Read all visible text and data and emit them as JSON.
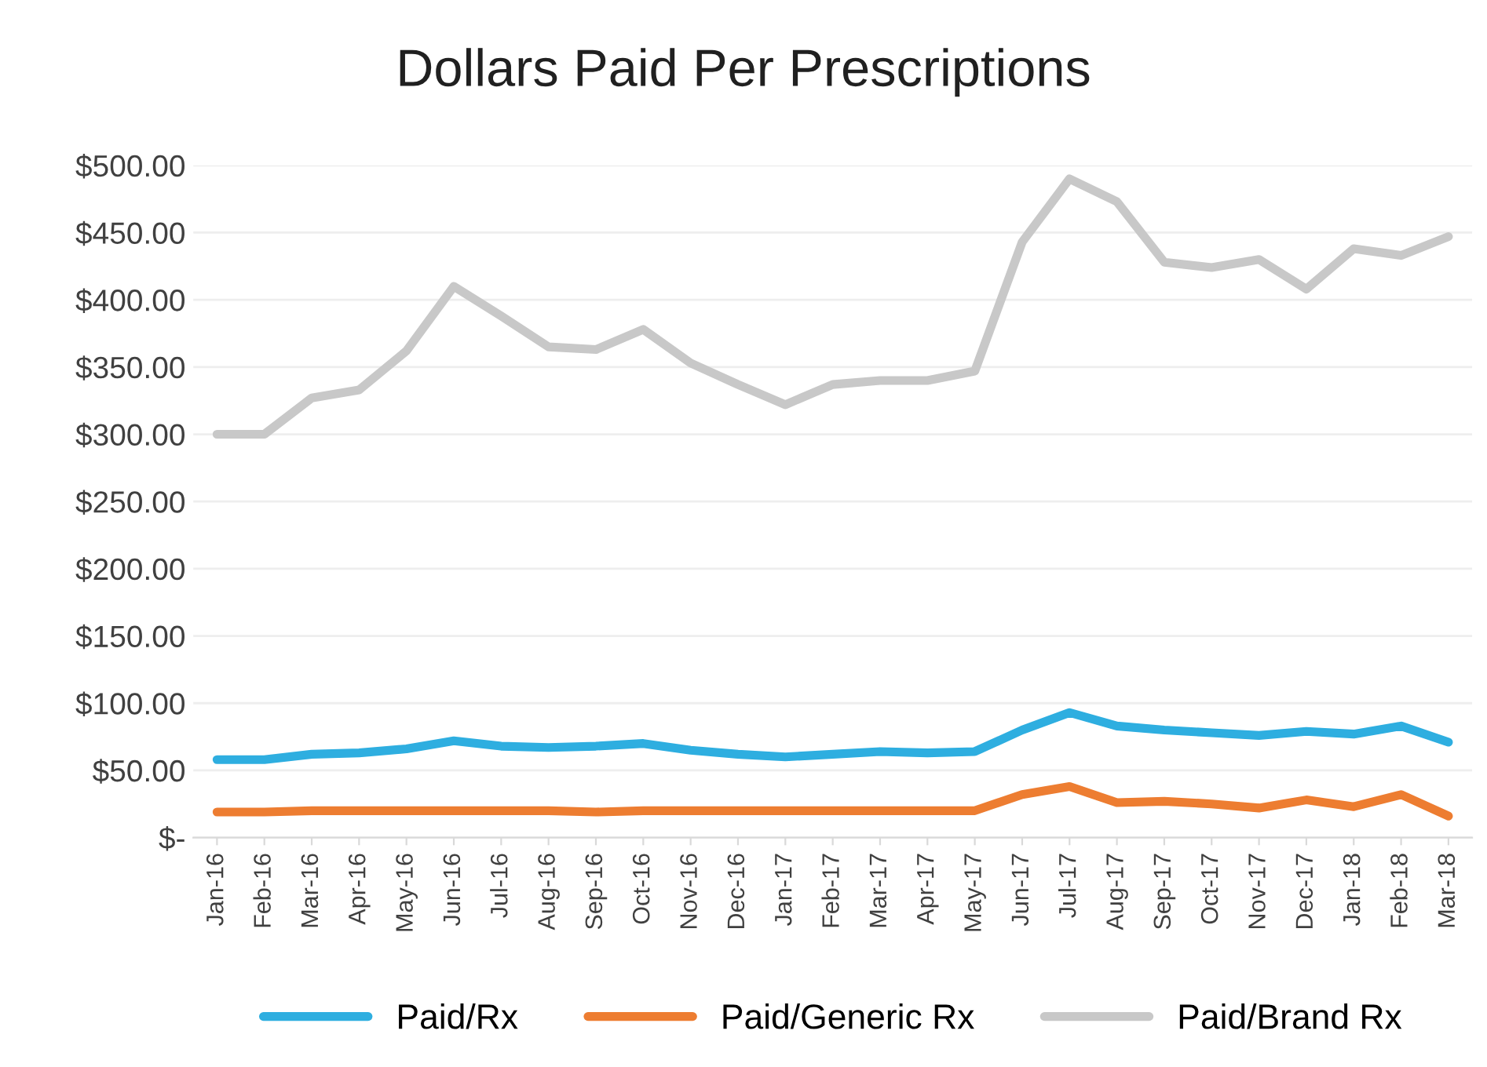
{
  "chart_data": {
    "type": "line",
    "title": "Dollars Paid Per Prescriptions",
    "categories": [
      "Jan-16",
      "Feb-16",
      "Mar-16",
      "Apr-16",
      "May-16",
      "Jun-16",
      "Jul-16",
      "Aug-16",
      "Sep-16",
      "Oct-16",
      "Nov-16",
      "Dec-16",
      "Jan-17",
      "Feb-17",
      "Mar-17",
      "Apr-17",
      "May-17",
      "Jun-17",
      "Jul-17",
      "Aug-17",
      "Sep-17",
      "Oct-17",
      "Nov-17",
      "Dec-17",
      "Jan-18",
      "Feb-18",
      "Mar-18"
    ],
    "series": [
      {
        "name": "Paid/Rx",
        "color": "#2eaee0",
        "values": [
          58,
          58,
          62,
          63,
          66,
          72,
          68,
          67,
          68,
          70,
          65,
          62,
          60,
          62,
          64,
          63,
          64,
          80,
          93,
          83,
          80,
          78,
          76,
          79,
          77,
          83,
          71
        ]
      },
      {
        "name": "Paid/Generic Rx",
        "color": "#ed7d31",
        "values": [
          19,
          19,
          20,
          20,
          20,
          20,
          20,
          20,
          19,
          20,
          20,
          20,
          20,
          20,
          20,
          20,
          20,
          32,
          38,
          26,
          27,
          25,
          22,
          28,
          23,
          32,
          16
        ]
      },
      {
        "name": "Paid/Brand Rx",
        "color": "#c8c8c8",
        "values": [
          300,
          300,
          327,
          333,
          362,
          410,
          388,
          365,
          363,
          378,
          353,
          337,
          322,
          337,
          340,
          340,
          347,
          443,
          490,
          473,
          428,
          424,
          430,
          408,
          438,
          433,
          447
        ]
      }
    ],
    "ylim": [
      0,
      500
    ],
    "yticks": [
      {
        "value": 0,
        "label": "$-"
      },
      {
        "value": 50,
        "label": "$50.00"
      },
      {
        "value": 100,
        "label": "$100.00"
      },
      {
        "value": 150,
        "label": "$150.00"
      },
      {
        "value": 200,
        "label": "$200.00"
      },
      {
        "value": 250,
        "label": "$250.00"
      },
      {
        "value": 300,
        "label": "$300.00"
      },
      {
        "value": 350,
        "label": "$350.00"
      },
      {
        "value": 400,
        "label": "$400.00"
      },
      {
        "value": 450,
        "label": "$450.00"
      },
      {
        "value": 500,
        "label": "$500.00"
      }
    ],
    "grid": "y",
    "legend": "bottom",
    "marker": "none",
    "line_style": "solid"
  }
}
